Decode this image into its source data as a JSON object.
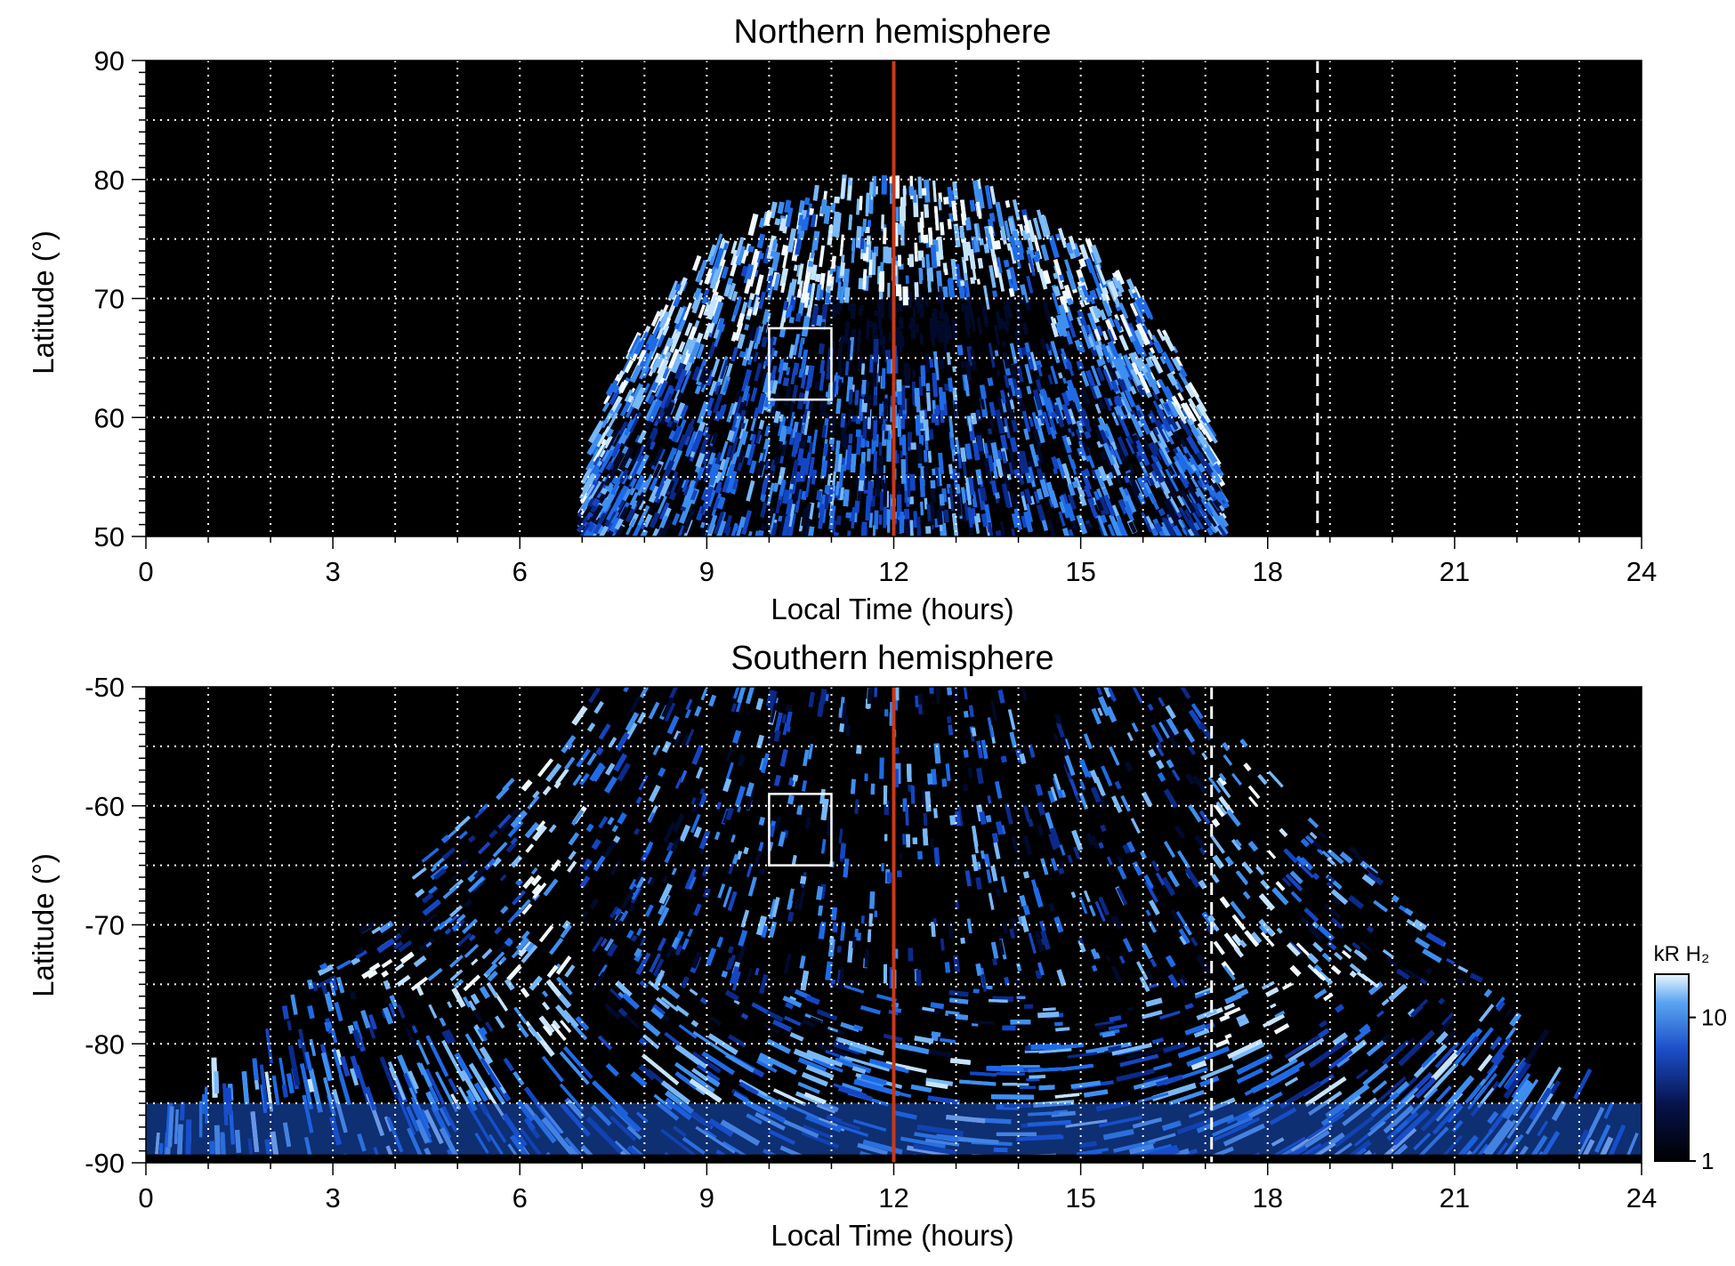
{
  "colors": {
    "background_map": "#000000",
    "emission_low": "#000010",
    "emission_mid": "#1f5fd6",
    "emission_high": "#e8f4ff",
    "grid": "#ffffff",
    "noon_line": "#c8391a",
    "box": "#ffffff"
  },
  "chart_data": [
    {
      "type": "heatmap",
      "title": "Northern hemisphere",
      "xlabel": "Local Time (hours)",
      "ylabel": "Latitude (°)",
      "xlim": [
        0,
        24
      ],
      "ylim": [
        50,
        90
      ],
      "xticks": [
        "0",
        "3",
        "6",
        "9",
        "12",
        "15",
        "18",
        "21",
        "24"
      ],
      "yticks": [
        "50",
        "60",
        "70",
        "80",
        "90"
      ],
      "grid": true,
      "coverage": {
        "lt_start": 7.0,
        "lt_end": 17.3,
        "max_latitude": 80
      },
      "noon_line_lt": 12,
      "dashed_line_lt": 18.8,
      "box": {
        "lt": [
          10,
          11
        ],
        "lat": [
          61.5,
          67.5
        ]
      }
    },
    {
      "type": "heatmap",
      "title": "Southern hemisphere",
      "xlabel": "Local Time (hours)",
      "ylabel": "Latitude (°)",
      "xlim": [
        0,
        24
      ],
      "ylim": [
        -90,
        -50
      ],
      "xticks": [
        "0",
        "3",
        "6",
        "9",
        "12",
        "15",
        "18",
        "21",
        "24"
      ],
      "yticks": [
        "-50",
        "-60",
        "-70",
        "-80",
        "-90"
      ],
      "grid": true,
      "coverage": {
        "lt_start": 0,
        "lt_end": 24,
        "min_latitude": -90
      },
      "noon_line_lt": 12,
      "dashed_line_lt": 17.1,
      "box": {
        "lt": [
          10,
          11
        ],
        "lat": [
          -65,
          -59
        ]
      }
    }
  ],
  "colorbar": {
    "label": "kR H₂",
    "scale": "log",
    "range": [
      1,
      20
    ],
    "ticks": [
      "1",
      "10"
    ]
  }
}
